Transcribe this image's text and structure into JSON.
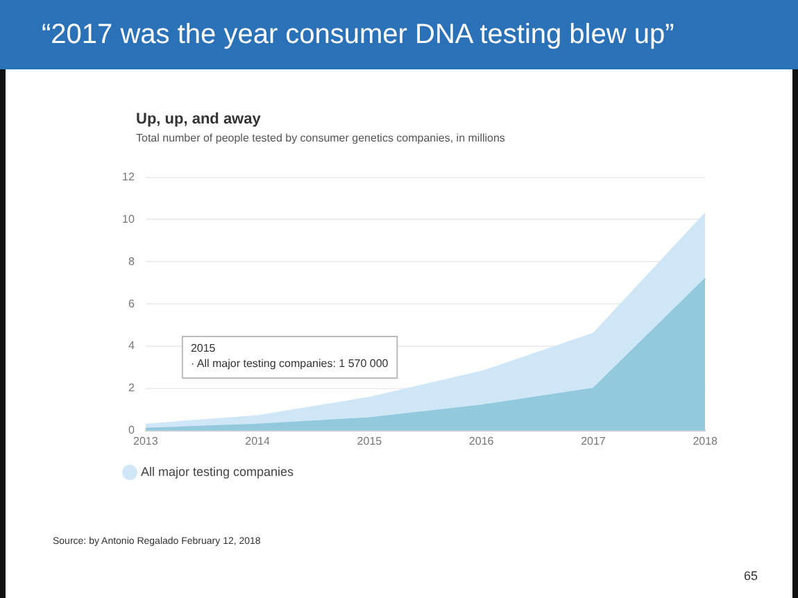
{
  "chart_data": {
    "type": "area",
    "title": "“2017 was the year consumer DNA testing blew up”",
    "subtitle": "Up, up, and away",
    "categories": [
      "2013",
      "2014",
      "2015",
      "2016",
      "2017",
      "2018"
    ],
    "series": [
      {
        "color": "#cfe6f6",
        "name": "All major testing companies",
        "values": [
          0.3,
          0.7,
          1.57,
          2.8,
          4.6,
          10.3
        ]
      },
      {
        "color": "#93c9dc",
        "values": [
          0.1,
          0.3,
          0.6,
          1.2,
          2.0,
          7.2
        ]
      }
    ],
    "ylim": [
      0,
      12
    ],
    "yticks": [
      0,
      2,
      4,
      6,
      8,
      10,
      12
    ],
    "grid": "y",
    "legend": "bottom",
    "annotations": [
      "Total number of people tested by consumer genetics companies, in millions",
      {
        "text": "2015\n· All major testing companies: 1 570 000",
        "x": "2015",
        "y": 1.57
      },
      "Source: by Antonio Regalado February 12, 2018",
      "65"
    ]
  }
}
